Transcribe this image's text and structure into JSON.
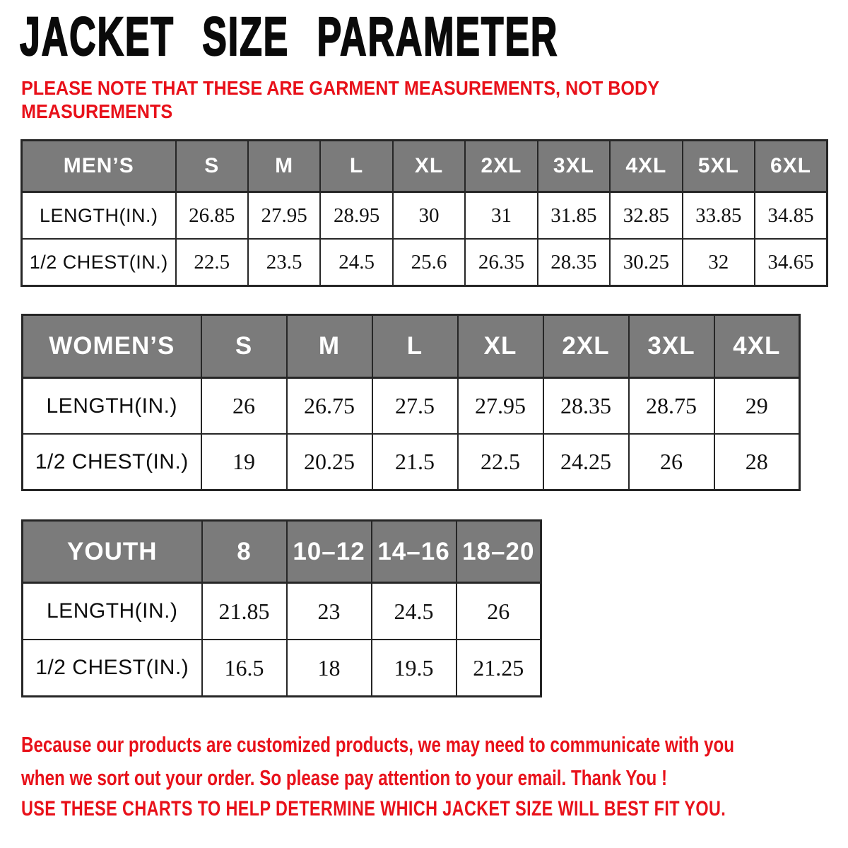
{
  "page": {
    "title": "JACKET SIZE PARAMETER"
  },
  "note": {
    "lines": [
      "PLEASE NOTE THAT THESE ARE GARMENT MEASUREMENTS, NOT BODY",
      "MEASUREMENTS"
    ]
  },
  "tables": [
    {
      "id": "mens",
      "header": "MEN’S",
      "sizes": [
        "S",
        "M",
        "L",
        "XL",
        "2XL",
        "3XL",
        "4XL",
        "5XL",
        "6XL"
      ],
      "rows": [
        {
          "label": "LENGTH(IN.)",
          "values": [
            "26.85",
            "27.95",
            "28.95",
            "30",
            "31",
            "31.85",
            "32.85",
            "33.85",
            "34.85"
          ]
        },
        {
          "label": "1/2 CHEST(IN.)",
          "values": [
            "22.5",
            "23.5",
            "24.5",
            "25.6",
            "26.35",
            "28.35",
            "30.25",
            "32",
            "34.65"
          ]
        }
      ]
    },
    {
      "id": "womens",
      "header": "WOMEN’S",
      "sizes": [
        "S",
        "M",
        "L",
        "XL",
        "2XL",
        "3XL",
        "4XL"
      ],
      "rows": [
        {
          "label": "LENGTH(IN.)",
          "values": [
            "26",
            "26.75",
            "27.5",
            "27.95",
            "28.35",
            "28.75",
            "29"
          ]
        },
        {
          "label": "1/2 CHEST(IN.)",
          "values": [
            "19",
            "20.25",
            "21.5",
            "22.5",
            "24.25",
            "26",
            "28"
          ]
        }
      ]
    },
    {
      "id": "youth",
      "header": "YOUTH",
      "sizes": [
        "8",
        "10–12",
        "14–16",
        "18–20"
      ],
      "rows": [
        {
          "label": "LENGTH(IN.)",
          "values": [
            "21.85",
            "23",
            "24.5",
            "26"
          ]
        },
        {
          "label": "1/2 CHEST(IN.)",
          "values": [
            "16.5",
            "18",
            "19.5",
            "21.25"
          ]
        }
      ]
    }
  ],
  "footer": {
    "notice_lines": [
      "Because our products are customized products, we may need to communicate with you",
      "when we sort out your order. So please pay attention to your email. Thank You !"
    ],
    "fit_advice": "USE THESE CHARTS TO HELP DETERMINE WHICH JACKET SIZE WILL BEST FIT YOU."
  },
  "colors": {
    "accent_red": "#e8111a",
    "header_gray": "#7b7b7b",
    "header_text": "#ffffff",
    "border": "#262626",
    "background": "#ffffff"
  }
}
